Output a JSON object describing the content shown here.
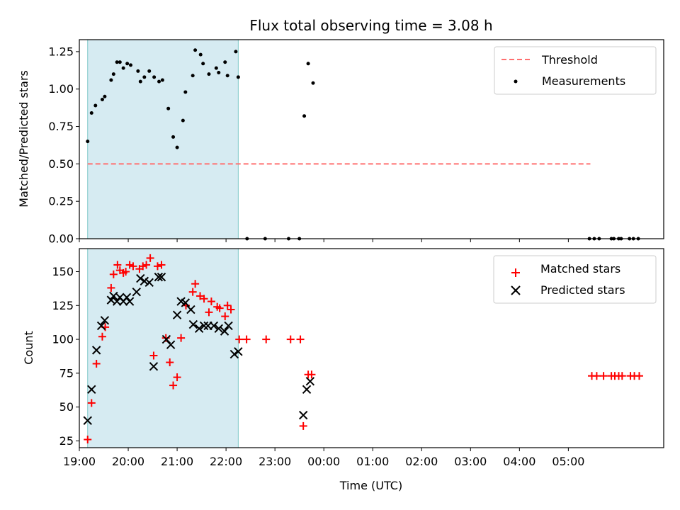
{
  "title": "Flux total observing time = 3.08 h",
  "xlabel": "Time (UTC)",
  "x_tick_labels": [
    "19:00",
    "20:00",
    "21:00",
    "22:00",
    "23:00",
    "00:00",
    "01:00",
    "02:00",
    "03:00",
    "04:00",
    "05:00"
  ],
  "colors": {
    "threshold": "#ff7070",
    "measurements": "#000000",
    "matched": "#ff0000",
    "predicted": "#000000",
    "shade": "#add8e6"
  },
  "chart_data": [
    {
      "type": "scatter",
      "ylabel": "Matched/Predicted stars",
      "ylim": [
        0,
        1.33
      ],
      "y_ticks": [
        "0.00",
        "0.25",
        "0.50",
        "0.75",
        "1.00",
        "1.25"
      ],
      "shaded_span_hours": [
        19.17,
        22.25
      ],
      "legend": {
        "position": "top-right",
        "entries": [
          "Threshold",
          "Measurements"
        ]
      },
      "series": [
        {
          "name": "Threshold",
          "kind": "line",
          "x": [
            19.17,
            29.45
          ],
          "y": [
            0.5,
            0.5
          ]
        },
        {
          "name": "Measurements",
          "kind": "dot",
          "x": [
            19.17,
            19.25,
            19.33,
            19.47,
            19.52,
            19.65,
            19.7,
            19.77,
            19.83,
            19.9,
            19.98,
            20.05,
            20.2,
            20.25,
            20.33,
            20.43,
            20.53,
            20.63,
            20.7,
            20.82,
            20.92,
            21.0,
            21.12,
            21.17,
            21.32,
            21.37,
            21.48,
            21.53,
            21.65,
            21.8,
            21.85,
            21.98,
            22.03,
            22.2,
            22.25,
            22.43,
            22.8,
            23.28,
            23.5,
            23.6,
            23.68,
            23.78,
            29.43,
            29.53,
            29.63,
            29.88,
            29.93,
            30.03,
            30.08,
            30.25,
            30.33,
            30.43
          ],
          "y": [
            0.65,
            0.84,
            0.89,
            0.93,
            0.95,
            1.06,
            1.1,
            1.18,
            1.18,
            1.14,
            1.17,
            1.16,
            1.12,
            1.05,
            1.08,
            1.12,
            1.08,
            1.05,
            1.06,
            0.87,
            0.68,
            0.61,
            0.79,
            0.98,
            1.09,
            1.26,
            1.23,
            1.17,
            1.1,
            1.14,
            1.11,
            1.18,
            1.09,
            1.25,
            1.08,
            0,
            0,
            0,
            0,
            0.82,
            1.17,
            1.04,
            0,
            0,
            0,
            0,
            0,
            0,
            0,
            0,
            0,
            0
          ]
        }
      ]
    },
    {
      "type": "scatter",
      "ylabel": "Count",
      "ylim": [
        20,
        167
      ],
      "y_ticks": [
        "25",
        "50",
        "75",
        "100",
        "125",
        "150"
      ],
      "shaded_span_hours": [
        19.17,
        22.25
      ],
      "legend": {
        "position": "top-right",
        "entries": [
          "Matched stars",
          "Predicted stars"
        ]
      },
      "series": [
        {
          "name": "Matched stars",
          "kind": "plus",
          "x": [
            19.17,
            19.25,
            19.35,
            19.47,
            19.53,
            19.65,
            19.7,
            19.78,
            19.83,
            19.9,
            19.95,
            20.03,
            20.1,
            20.23,
            20.3,
            20.37,
            20.45,
            20.52,
            20.6,
            20.68,
            20.77,
            20.85,
            20.92,
            21.0,
            21.08,
            21.18,
            21.32,
            21.37,
            21.47,
            21.55,
            21.65,
            21.7,
            21.82,
            21.87,
            21.98,
            22.03,
            22.1,
            22.27,
            22.42,
            22.82,
            23.32,
            23.52,
            23.58,
            23.68,
            23.75,
            29.48,
            29.58,
            29.72,
            29.88,
            29.95,
            30.03,
            30.1,
            30.27,
            30.35,
            30.45
          ],
          "y": [
            26,
            53,
            82,
            102,
            109,
            138,
            148,
            155,
            151,
            149,
            150,
            155,
            154,
            152,
            154,
            155,
            160,
            88,
            154,
            155,
            101,
            83,
            66,
            72,
            101,
            125,
            135,
            141,
            132,
            130,
            120,
            128,
            124,
            123,
            117,
            125,
            122,
            100,
            100,
            100,
            100,
            100,
            36,
            74,
            74,
            73,
            73,
            73,
            73,
            73,
            73,
            73,
            73,
            73,
            73
          ]
        },
        {
          "name": "Predicted stars",
          "kind": "cross",
          "x": [
            19.17,
            19.25,
            19.35,
            19.45,
            19.52,
            19.65,
            19.7,
            19.77,
            19.83,
            19.9,
            19.97,
            20.03,
            20.17,
            20.25,
            20.33,
            20.43,
            20.52,
            20.62,
            20.68,
            20.78,
            20.87,
            21.0,
            21.08,
            21.17,
            21.28,
            21.33,
            21.45,
            21.55,
            21.63,
            21.75,
            21.85,
            21.97,
            22.05,
            22.17,
            22.25,
            23.58,
            23.65,
            23.72
          ],
          "y": [
            40,
            63,
            92,
            110,
            114,
            129,
            132,
            128,
            131,
            128,
            131,
            128,
            135,
            145,
            143,
            142,
            80,
            146,
            146,
            100,
            96,
            118,
            128,
            127,
            122,
            111,
            108,
            110,
            110,
            110,
            108,
            106,
            110,
            89,
            91,
            44,
            63,
            69
          ]
        }
      ]
    }
  ]
}
